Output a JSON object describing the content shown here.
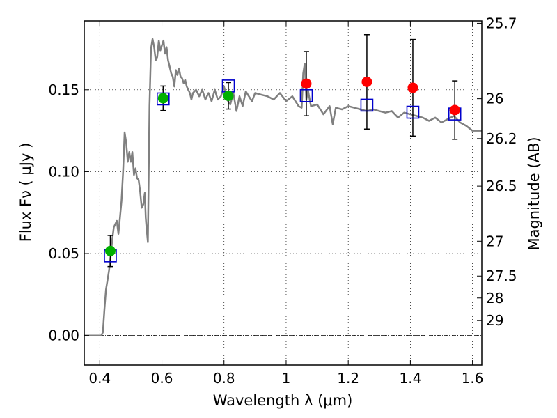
{
  "chart_data": {
    "type": "scatter",
    "xlabel": "Wavelength  λ (μm)",
    "ylabel": "Flux  Fν  ( μJy )",
    "y2label": "Magnitude (AB)",
    "xlim": [
      0.35,
      1.63
    ],
    "ylim": [
      -0.018,
      0.192
    ],
    "grid": true,
    "x_ticks": [
      0.4,
      0.6,
      0.8,
      1.0,
      1.2,
      1.4,
      1.6
    ],
    "x_tick_labels": [
      "0.4",
      "0.6",
      "0.8",
      "1",
      "1.2",
      "1.4",
      "1.6"
    ],
    "y_ticks": [
      0.0,
      0.05,
      0.1,
      0.15
    ],
    "y_tick_labels": [
      "0.00",
      "0.05",
      "0.10",
      "0.15"
    ],
    "mag_ticks": [
      {
        "mag": 25.7,
        "label": "25.7"
      },
      {
        "mag": 26.0,
        "label": "26"
      },
      {
        "mag": 26.2,
        "label": "26.2"
      },
      {
        "mag": 26.5,
        "label": "26.5"
      },
      {
        "mag": 27.0,
        "label": "27"
      },
      {
        "mag": 27.5,
        "label": "27.5"
      },
      {
        "mag": 28.0,
        "label": "28"
      },
      {
        "mag": 29.0,
        "label": "29"
      }
    ],
    "colors": {
      "model": "#808080",
      "model_photometry": "#0000cc",
      "optical_photometry": "#00b000",
      "nir_photometry": "#ff0000",
      "errorbar": "#000000"
    },
    "series": [
      {
        "kind": "line",
        "x": [
          0.35,
          0.39,
          0.405,
          0.41,
          0.415,
          0.42,
          0.425,
          0.43,
          0.435,
          0.44,
          0.445,
          0.45,
          0.455,
          0.46,
          0.465,
          0.47,
          0.475,
          0.48,
          0.485,
          0.49,
          0.495,
          0.5,
          0.505,
          0.51,
          0.515,
          0.52,
          0.525,
          0.53,
          0.535,
          0.54,
          0.545,
          0.548,
          0.55,
          0.555,
          0.56,
          0.565,
          0.57,
          0.575,
          0.58,
          0.585,
          0.59,
          0.595,
          0.6,
          0.605,
          0.61,
          0.615,
          0.62,
          0.625,
          0.63,
          0.635,
          0.64,
          0.645,
          0.65,
          0.655,
          0.66,
          0.665,
          0.67,
          0.675,
          0.68,
          0.685,
          0.69,
          0.695,
          0.7,
          0.71,
          0.72,
          0.73,
          0.74,
          0.75,
          0.76,
          0.77,
          0.78,
          0.79,
          0.8,
          0.81,
          0.82,
          0.83,
          0.84,
          0.85,
          0.86,
          0.87,
          0.88,
          0.89,
          0.9,
          0.92,
          0.94,
          0.96,
          0.98,
          1.0,
          1.02,
          1.04,
          1.05,
          1.055,
          1.06,
          1.065,
          1.07,
          1.08,
          1.1,
          1.12,
          1.14,
          1.15,
          1.16,
          1.18,
          1.2,
          1.22,
          1.24,
          1.26,
          1.28,
          1.3,
          1.32,
          1.34,
          1.36,
          1.38,
          1.4,
          1.42,
          1.44,
          1.46,
          1.48,
          1.5,
          1.52,
          1.54,
          1.56,
          1.58,
          1.6,
          1.63
        ],
        "y": [
          0.0,
          0.0,
          0.0,
          0.002,
          0.016,
          0.028,
          0.034,
          0.04,
          0.048,
          0.058,
          0.066,
          0.068,
          0.07,
          0.062,
          0.072,
          0.082,
          0.1,
          0.124,
          0.118,
          0.106,
          0.112,
          0.106,
          0.112,
          0.098,
          0.102,
          0.096,
          0.095,
          0.088,
          0.078,
          0.08,
          0.087,
          0.072,
          0.067,
          0.057,
          0.14,
          0.175,
          0.181,
          0.176,
          0.168,
          0.17,
          0.18,
          0.174,
          0.177,
          0.18,
          0.172,
          0.176,
          0.168,
          0.164,
          0.16,
          0.158,
          0.152,
          0.162,
          0.159,
          0.163,
          0.158,
          0.157,
          0.154,
          0.156,
          0.152,
          0.15,
          0.148,
          0.144,
          0.148,
          0.15,
          0.146,
          0.15,
          0.144,
          0.148,
          0.143,
          0.15,
          0.144,
          0.146,
          0.152,
          0.144,
          0.141,
          0.148,
          0.137,
          0.146,
          0.14,
          0.149,
          0.146,
          0.143,
          0.148,
          0.147,
          0.146,
          0.144,
          0.148,
          0.143,
          0.146,
          0.14,
          0.139,
          0.16,
          0.166,
          0.144,
          0.15,
          0.14,
          0.141,
          0.135,
          0.14,
          0.129,
          0.139,
          0.138,
          0.14,
          0.139,
          0.138,
          0.137,
          0.138,
          0.137,
          0.136,
          0.137,
          0.133,
          0.136,
          0.135,
          0.134,
          0.133,
          0.131,
          0.133,
          0.13,
          0.132,
          0.134,
          0.13,
          0.128,
          0.125,
          0.125
        ]
      },
      {
        "kind": "square",
        "x": [
          0.434,
          0.604,
          0.814,
          1.065,
          1.26,
          1.408,
          1.543
        ],
        "y": [
          0.0486,
          0.1444,
          0.1523,
          0.1464,
          0.1406,
          0.1363,
          0.1352
        ]
      },
      {
        "kind": "circle",
        "x": [
          0.434,
          0.604,
          0.814
        ],
        "y": [
          0.0516,
          0.1448,
          0.1463
        ],
        "yerr": [
          0.0095,
          0.0075,
          0.0081
        ]
      },
      {
        "kind": "circle",
        "x": [
          1.065,
          1.26,
          1.408,
          1.543
        ],
        "y": [
          0.1537,
          0.1548,
          0.1512,
          0.1376
        ],
        "yerr": [
          0.0196,
          0.0288,
          0.0295,
          0.0178
        ]
      }
    ]
  }
}
